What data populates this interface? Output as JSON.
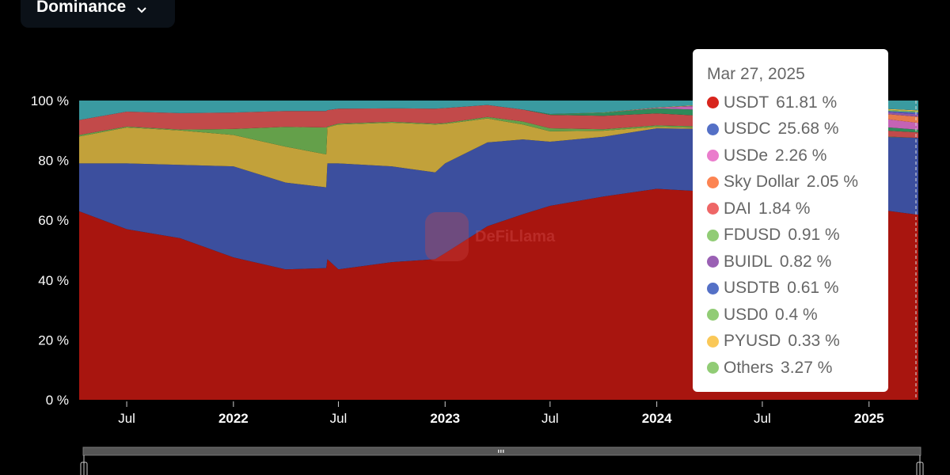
{
  "dropdown": {
    "label": "Dominance",
    "icon": "chevron-down-icon"
  },
  "watermark": "DeFiLlama",
  "tooltip": {
    "date": "Mar 27, 2025",
    "rows": [
      {
        "name": "USDT",
        "value": "61.81 %",
        "color": "#d8251d"
      },
      {
        "name": "USDC",
        "value": "25.68 %",
        "color": "#5470c6"
      },
      {
        "name": "USDe",
        "value": "2.26 %",
        "color": "#ea7ccc"
      },
      {
        "name": "Sky Dollar",
        "value": "2.05 %",
        "color": "#fc8452"
      },
      {
        "name": "DAI",
        "value": "1.84 %",
        "color": "#ee6666"
      },
      {
        "name": "FDUSD",
        "value": "0.91 %",
        "color": "#91cc75"
      },
      {
        "name": "BUIDL",
        "value": "0.82 %",
        "color": "#9a60b4"
      },
      {
        "name": "USDTB",
        "value": "0.61 %",
        "color": "#5470c6"
      },
      {
        "name": "USD0",
        "value": "0.4 %",
        "color": "#91cc75"
      },
      {
        "name": "PYUSD",
        "value": "0.33 %",
        "color": "#fac858"
      },
      {
        "name": "Others",
        "value": "3.27 %",
        "color": "#91cc75"
      }
    ]
  },
  "chart_data": {
    "type": "area",
    "stacked": true,
    "normalized": true,
    "ylim": [
      0,
      100
    ],
    "yticks": [
      "0 %",
      "20 %",
      "40 %",
      "60 %",
      "80 %",
      "100 %"
    ],
    "xlim": [
      "2021-04-10",
      "2025-03-27"
    ],
    "xticks": [
      {
        "date": "2021-07-01",
        "label": "Jul",
        "bold": false
      },
      {
        "date": "2022-01-01",
        "label": "2022",
        "bold": true
      },
      {
        "date": "2022-07-01",
        "label": "Jul",
        "bold": false
      },
      {
        "date": "2023-01-01",
        "label": "2023",
        "bold": true
      },
      {
        "date": "2023-07-01",
        "label": "Jul",
        "bold": false
      },
      {
        "date": "2024-01-01",
        "label": "2024",
        "bold": true
      },
      {
        "date": "2024-07-01",
        "label": "Jul",
        "bold": false
      },
      {
        "date": "2025-01-01",
        "label": "2025",
        "bold": true
      }
    ],
    "grid": false,
    "x": [
      "2021-04-10",
      "2021-07-01",
      "2021-10-01",
      "2022-01-01",
      "2022-04-01",
      "2022-06-10",
      "2022-06-12",
      "2022-07-01",
      "2022-10-01",
      "2022-12-15",
      "2023-01-01",
      "2023-03-15",
      "2023-05-15",
      "2023-07-01",
      "2023-10-01",
      "2024-01-01",
      "2024-04-01",
      "2024-07-01",
      "2024-10-01",
      "2025-01-01",
      "2025-03-27"
    ],
    "series": [
      {
        "name": "USDT",
        "color": "#a8150f",
        "values": [
          63,
          57,
          54,
          47.6,
          43.6,
          44,
          47,
          43.6,
          46,
          47,
          49,
          58,
          62,
          65,
          68,
          70.5,
          69.5,
          68,
          66,
          64,
          61.81
        ]
      },
      {
        "name": "USDC",
        "color": "#3c4f9e",
        "values": [
          16,
          22,
          24.5,
          30.4,
          29,
          27,
          32,
          35.4,
          32,
          29,
          30,
          28,
          25,
          21.5,
          20,
          20.2,
          21,
          21,
          22,
          24,
          25.68
        ]
      },
      {
        "color": "#c2a13a",
        "values": [
          9,
          12,
          11.5,
          10.5,
          12,
          11,
          12,
          13,
          14.6,
          16,
          13.2,
          8,
          5,
          3.5,
          2,
          0.5,
          0.3,
          0.2,
          0.1,
          0.1,
          0
        ]
      },
      {
        "color": "#64a04a",
        "values": [
          0.5,
          0.3,
          0.3,
          2,
          6.6,
          9,
          0.3,
          0.3,
          0.3,
          0.3,
          0.3,
          0.5,
          1,
          1,
          0.5,
          0.5,
          0.5,
          0.4,
          0.3,
          0.2,
          0
        ]
      },
      {
        "name": "DAI",
        "color": "#c24a4a",
        "values": [
          5,
          5,
          5.5,
          5.5,
          5.3,
          5.5,
          5.5,
          5,
          4.5,
          5,
          5,
          4,
          4,
          4.5,
          4.5,
          4,
          3.5,
          3,
          2.5,
          2,
          1.84
        ]
      },
      {
        "name": "FDUSD",
        "color": "#2f8a5a",
        "values": [
          0,
          0,
          0,
          0,
          0,
          0,
          0,
          0,
          0,
          0,
          0,
          0,
          0,
          0.3,
          1,
          1.7,
          2,
          1.6,
          1.4,
          1.2,
          0.91
        ]
      },
      {
        "name": "USDe",
        "color": "#c463b5",
        "values": [
          0,
          0,
          0,
          0,
          0,
          0,
          0,
          0,
          0,
          0,
          0,
          0,
          0,
          0,
          0,
          0.2,
          1.5,
          2.5,
          2.8,
          3,
          2.26
        ]
      },
      {
        "name": "Sky Dollar",
        "color": "#e67a4c",
        "values": [
          0,
          0,
          0,
          0,
          0,
          0,
          0,
          0,
          0,
          0,
          0,
          0,
          0,
          0,
          0,
          0,
          0,
          0,
          0.5,
          1.5,
          2.05
        ]
      },
      {
        "name": "BUIDL",
        "color": "#8e58a8",
        "values": [
          0,
          0,
          0,
          0,
          0,
          0,
          0,
          0,
          0,
          0,
          0,
          0,
          0,
          0,
          0,
          0,
          0.2,
          0.3,
          0.4,
          0.6,
          0.82
        ]
      },
      {
        "name": "USDTB",
        "color": "#4a62c0",
        "values": [
          0,
          0,
          0,
          0,
          0,
          0,
          0,
          0,
          0,
          0,
          0,
          0,
          0,
          0,
          0,
          0,
          0,
          0,
          0,
          0.2,
          0.61
        ]
      },
      {
        "name": "USD0",
        "color": "#7bbd62",
        "values": [
          0,
          0,
          0,
          0,
          0,
          0,
          0,
          0,
          0,
          0,
          0,
          0,
          0,
          0,
          0,
          0,
          0,
          0.2,
          0.3,
          0.4,
          0.4
        ]
      },
      {
        "name": "PYUSD",
        "color": "#e8b945",
        "values": [
          0,
          0,
          0,
          0,
          0,
          0,
          0,
          0,
          0,
          0,
          0,
          0,
          0,
          0,
          0.1,
          0.1,
          0.2,
          0.2,
          0.3,
          0.3,
          0.33
        ]
      },
      {
        "name": "Others",
        "color": "#3a9aa0",
        "values": [
          6.5,
          3.7,
          4.2,
          4,
          3.5,
          3.5,
          3.2,
          2.7,
          2.6,
          2.7,
          2.5,
          1.5,
          3,
          4.5,
          4,
          2.3,
          1.3,
          2.5,
          2.7,
          2.5,
          3.27
        ]
      }
    ]
  }
}
